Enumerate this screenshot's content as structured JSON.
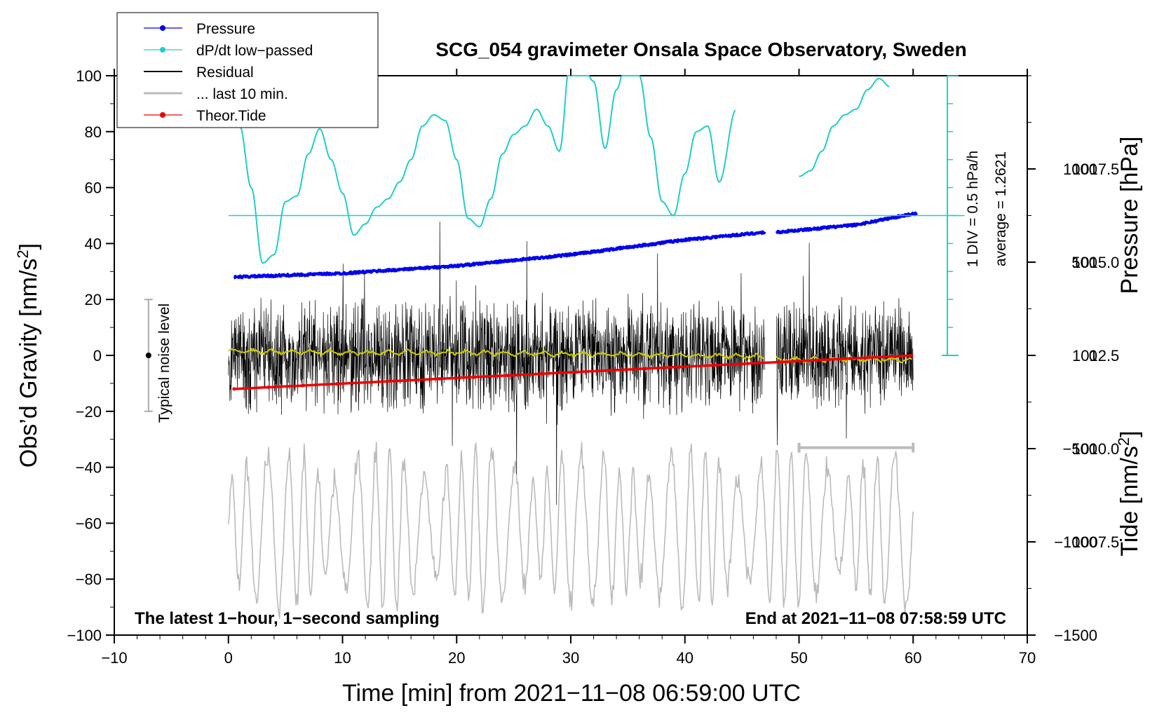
{
  "chart_data": {
    "type": "line",
    "title": "SCG_054 gravimeter Onsala Space Observatory, Sweden",
    "xlabel": "Time [min] from 2021−11−08 06:59:00 UTC",
    "ylabel_left": "Obs’d Gravity [nm/s",
    "ylabel_left_sup": "2",
    "ylabel_left_tail": "]",
    "ylabel_right_pressure": "Pressure [hPa]",
    "ylabel_right_tide": "Tide [nm/s",
    "ylabel_right_tide_sup": "2",
    "ylabel_right_tide_tail": "]",
    "xlim": [
      -10,
      70
    ],
    "ylim": [
      -100,
      100
    ],
    "x_ticks": [
      -10,
      0,
      10,
      20,
      30,
      40,
      50,
      60,
      70
    ],
    "x_tick_labels": [
      "−10",
      "0",
      "10",
      "20",
      "30",
      "40",
      "50",
      "60",
      "70"
    ],
    "y_ticks": [
      100,
      80,
      60,
      40,
      20,
      0,
      -20,
      -40,
      -60,
      -80,
      -100
    ],
    "y_tick_labels": [
      "100",
      "80",
      "60",
      "40",
      "20",
      "0",
      "−20",
      "−40",
      "−60",
      "−80",
      "−100"
    ],
    "pressure_axis": {
      "ticks": [
        1017.5,
        1015.0,
        1012.5,
        1010.0,
        1007.5
      ],
      "labels": [
        "1017.5",
        "1015.0",
        "1012.5",
        "1010.0",
        "1007.5"
      ],
      "range_hPa": [
        1005.0,
        1020.0
      ]
    },
    "tide_axis": {
      "ticks": [
        1000,
        500,
        0,
        -500,
        -1000,
        -1500
      ],
      "labels": [
        "1000",
        "500",
        "0",
        "−500",
        "−1000",
        "−1500"
      ],
      "range": [
        -1500,
        1500
      ]
    },
    "legend": [
      {
        "label": "Pressure",
        "color": "#0000ee",
        "marker": true
      },
      {
        "label": "dP/dt low−passed",
        "color": "#22cccc",
        "marker": true
      },
      {
        "label": "Residual",
        "color": "#000000",
        "marker": false
      },
      {
        "label": "... last 10 min.",
        "color": "#bbbbbb",
        "marker": false
      },
      {
        "label": "Theor.Tide",
        "color": "#ee0000",
        "marker": true
      }
    ],
    "series": [
      {
        "name": "Pressure",
        "unit": "hPa",
        "x": [
          0.5,
          10,
          20,
          30,
          40,
          47,
          48,
          55,
          60
        ],
        "values": [
          1014.6,
          1014.7,
          1014.9,
          1015.2,
          1015.6,
          1015.8,
          1015.8,
          1016.0,
          1016.3
        ]
      },
      {
        "name": "dP/dt low−passed",
        "unit": "gravity-axis units",
        "x": [
          0,
          1,
          2,
          3,
          4,
          5,
          6,
          7,
          8,
          9,
          10,
          11,
          12,
          13,
          14,
          15,
          16,
          17,
          18,
          19,
          20,
          21,
          22,
          23,
          24,
          25,
          26,
          27,
          28,
          29,
          30,
          31,
          32,
          33,
          34,
          35,
          36,
          37,
          38,
          39,
          40,
          41,
          42,
          43,
          44.5
        ],
        "values": [
          92,
          82,
          60,
          33,
          36,
          55,
          57,
          72,
          81,
          70,
          58,
          43,
          47,
          53,
          56,
          62,
          70,
          82,
          86,
          84,
          70,
          49,
          46,
          56,
          72,
          79,
          82,
          88,
          82,
          73,
          108,
          104,
          98,
          74,
          95,
          108,
          100,
          78,
          55,
          50,
          65,
          80,
          82,
          62,
          88
        ]
      },
      {
        "name": "dP/dt low−passed (after gap)",
        "unit": "gravity-axis units",
        "x": [
          50,
          51,
          52,
          53,
          54,
          55,
          56,
          57,
          58
        ],
        "values": [
          64,
          66,
          73,
          82,
          86,
          88,
          95,
          99,
          96
        ]
      },
      {
        "name": "Residual",
        "unit": "nm/s2",
        "x_range": [
          0,
          60
        ],
        "gap": [
          47,
          48
        ],
        "typical_amplitude": 15
      },
      {
        "name": "Residual smoothed",
        "unit": "nm/s2",
        "x": [
          0,
          10,
          20,
          30,
          40,
          47,
          48,
          55,
          60
        ],
        "values": [
          1.5,
          1,
          1,
          0.5,
          0,
          -0.5,
          -1.5,
          -1.5,
          -1.5
        ]
      },
      {
        "name": "... last 10 min.",
        "unit": "nm/s2",
        "x_range": [
          0,
          60
        ],
        "center": -62,
        "typical_amplitude": 20
      },
      {
        "name": "Theor.Tide",
        "unit": "nm/s2",
        "x": [
          0.5,
          60
        ],
        "values": [
          -180,
          0
        ]
      }
    ],
    "dpdt_reference_level": 50,
    "dpdt_scale_x": 63,
    "dpdt_scale_range": [
      0,
      100
    ],
    "last10_marker": {
      "x": [
        50,
        60
      ],
      "y": -33
    },
    "noise_bar": {
      "x": -7,
      "y": 0,
      "low": -20,
      "high": 20
    }
  },
  "annotations": {
    "noise_label": "Typical noise level",
    "scale_label_1": "1 DIV = 0.5 hPa/h",
    "scale_label_2": "average = 1.2621",
    "footer_left": "The latest 1−hour, 1−second sampling",
    "footer_right": "End at 2021−11−08 07:58:59 UTC"
  },
  "colors": {
    "pressure": "#0000ee",
    "dpdt": "#22cccc",
    "residual": "#000000",
    "last10": "#bbbbbb",
    "smooth": "#cccc00",
    "tide": "#ee0000"
  }
}
